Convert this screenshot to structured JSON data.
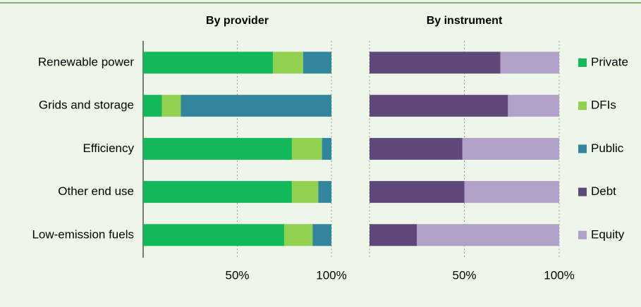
{
  "chart_data": [
    {
      "type": "stacked-bar-horizontal",
      "title": "By provider",
      "categories": [
        "Renewable power",
        "Grids and storage",
        "Efficiency",
        "Other end use",
        "Low-emission fuels"
      ],
      "series": [
        {
          "name": "Private",
          "color": "#13b85a",
          "values": [
            69,
            10,
            79,
            79,
            75
          ]
        },
        {
          "name": "DFIs",
          "color": "#92d050",
          "values": [
            16,
            10,
            16,
            14,
            15
          ]
        },
        {
          "name": "Public",
          "color": "#31859c",
          "values": [
            15,
            80,
            5,
            7,
            10
          ]
        }
      ],
      "xlim": [
        0,
        100
      ],
      "xticks": [
        {
          "value": 50,
          "label": "50%"
        },
        {
          "value": 100,
          "label": "100%"
        }
      ],
      "grid": true
    },
    {
      "type": "stacked-bar-horizontal",
      "title": "By instrument",
      "series": [
        {
          "name": "Debt",
          "color": "#5f497a",
          "values": [
            69,
            73,
            49,
            50,
            25
          ]
        },
        {
          "name": "Equity",
          "color": "#b1a0c7",
          "values": [
            31,
            27,
            51,
            50,
            75
          ]
        }
      ],
      "xlim": [
        0,
        100
      ],
      "xticks": [
        {
          "value": 50,
          "label": "50%"
        },
        {
          "value": 100,
          "label": "100%"
        }
      ],
      "grid": true
    }
  ]
}
